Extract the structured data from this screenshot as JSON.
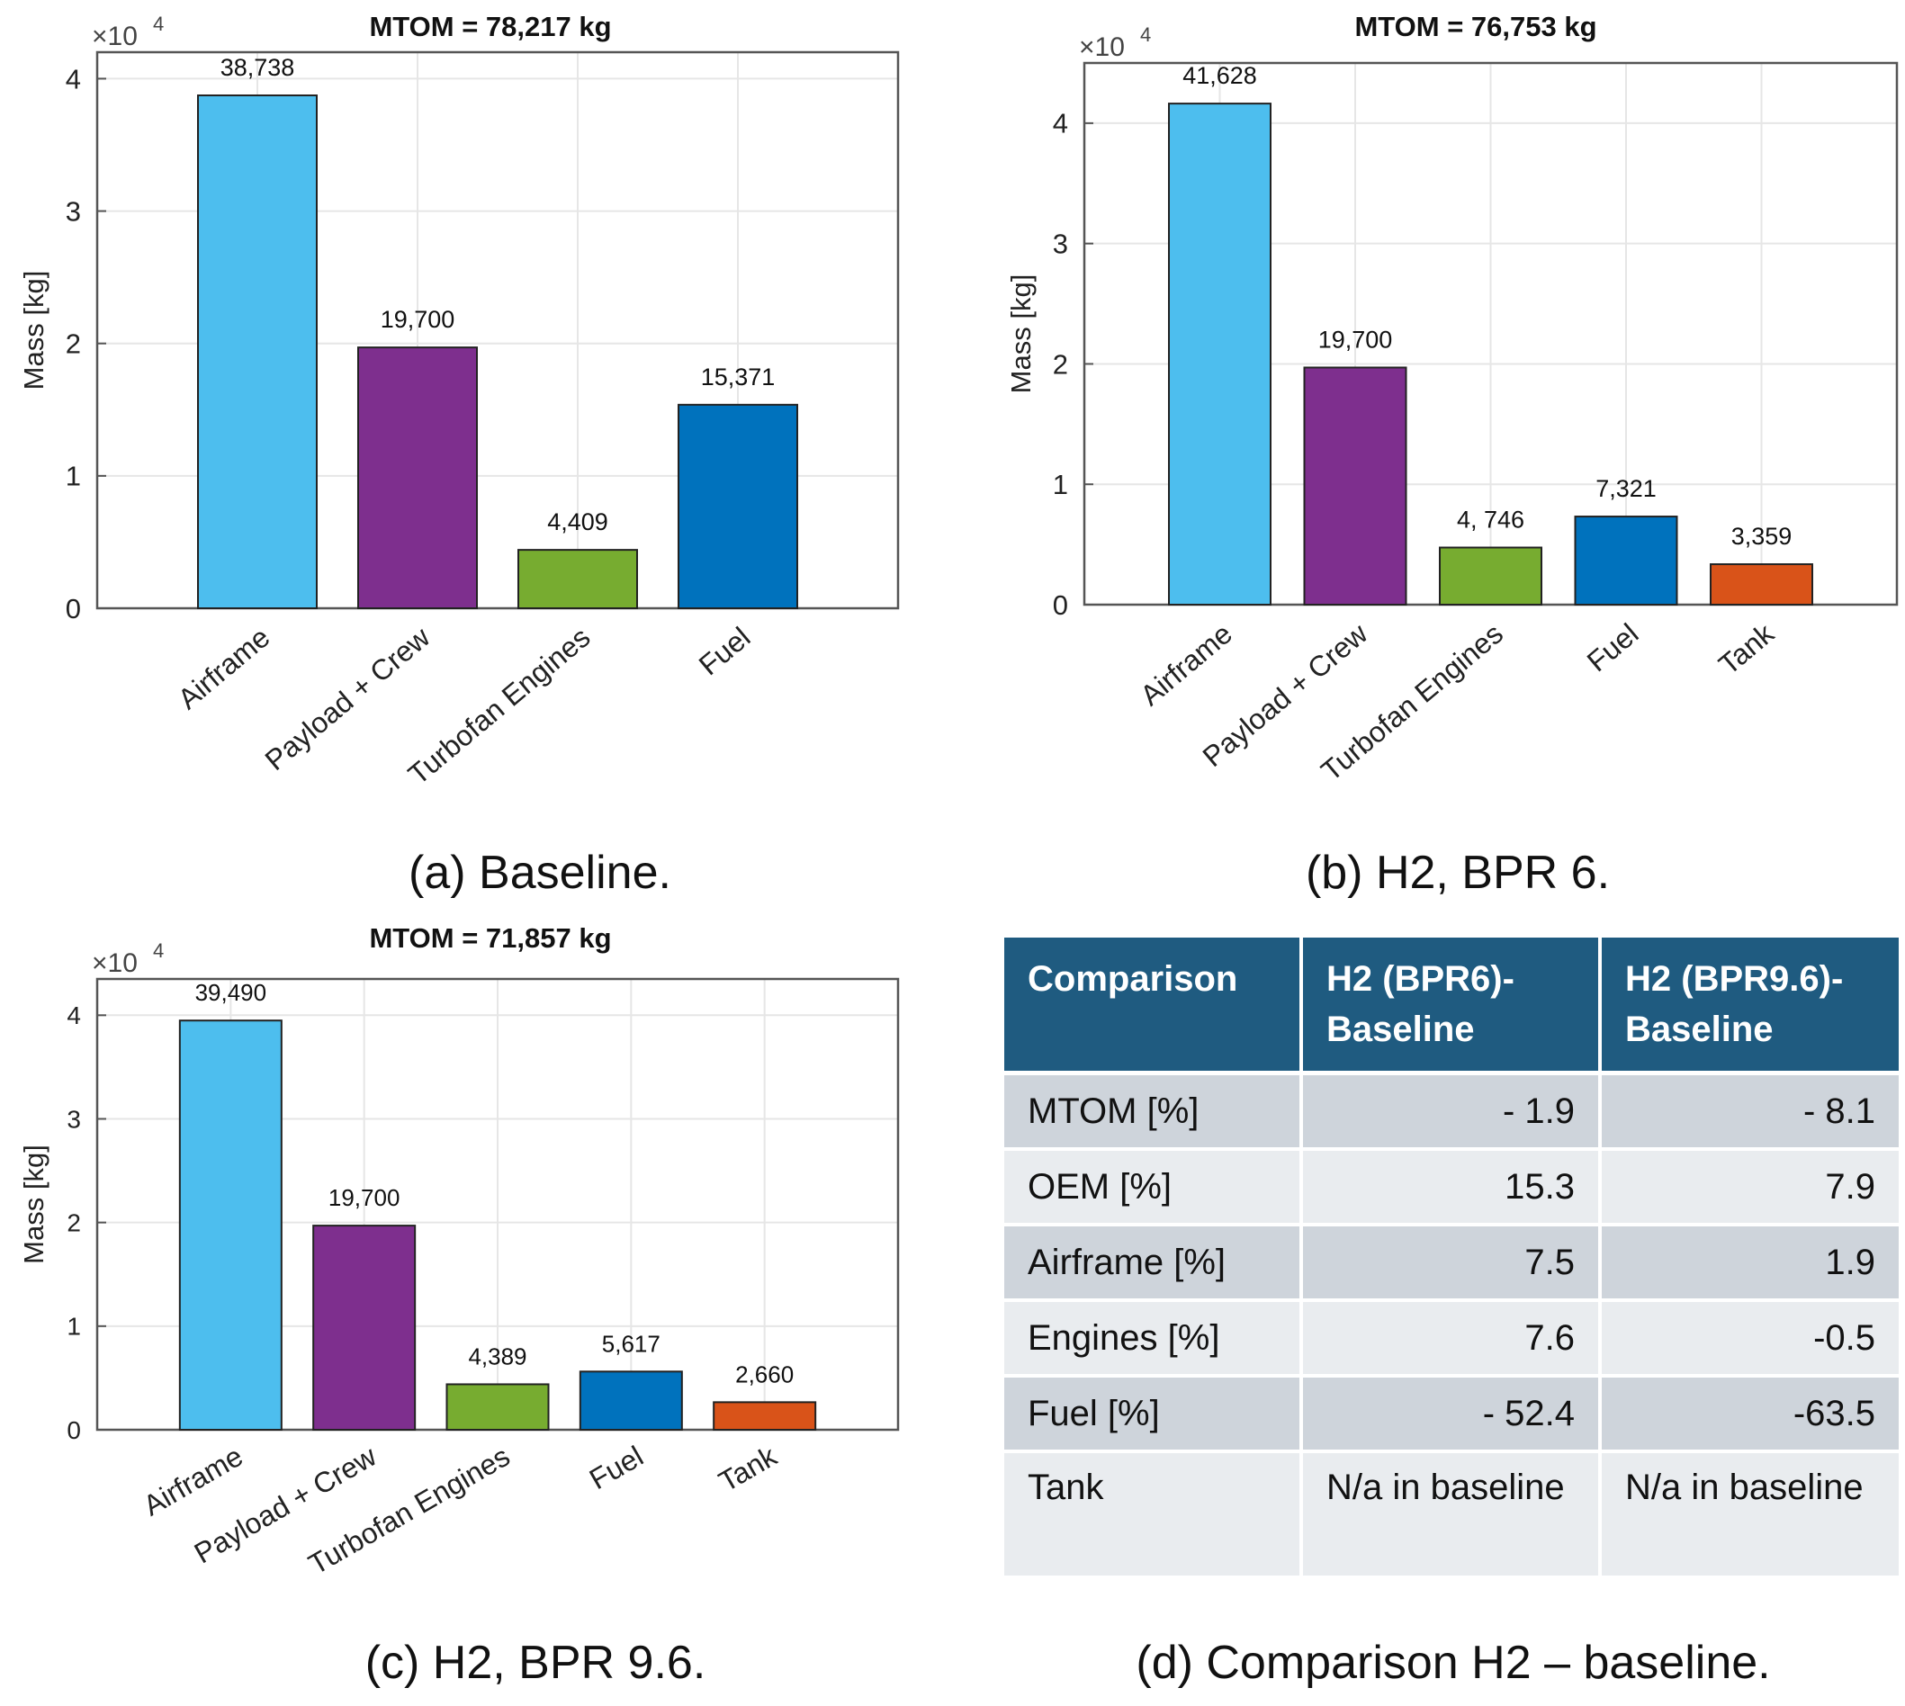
{
  "chart_data": [
    {
      "type": "bar",
      "panel": "a",
      "title": "MTOM = 78,217 kg",
      "ylabel": "Mass [kg]",
      "exponent_label": "×10",
      "exponent_power": "4",
      "ylim": [
        0,
        42000
      ],
      "y_ticks": [
        0,
        10000,
        20000,
        30000,
        40000
      ],
      "y_tick_labels": [
        "0",
        "1",
        "2",
        "3",
        "4"
      ],
      "grid": true,
      "categories": [
        "Airframe",
        "Payload + Crew",
        "Turbofan Engines",
        "Fuel"
      ],
      "values": [
        38738,
        19700,
        4409,
        15371
      ],
      "value_labels": [
        "38,738",
        "19,700",
        "4,409",
        "15,371"
      ],
      "colors": [
        "#4dbeee",
        "#7e2f8e",
        "#77ac30",
        "#0072bd"
      ],
      "caption": "(a) Baseline."
    },
    {
      "type": "bar",
      "panel": "b",
      "title": "MTOM = 76,753 kg",
      "ylabel": "Mass [kg]",
      "exponent_label": "×10",
      "exponent_power": "4",
      "ylim": [
        0,
        45000
      ],
      "y_ticks": [
        0,
        10000,
        20000,
        30000,
        40000
      ],
      "y_tick_labels": [
        "0",
        "1",
        "2",
        "3",
        "4"
      ],
      "grid": true,
      "categories": [
        "Airframe",
        "Payload + Crew",
        "Turbofan Engines",
        "Fuel",
        "Tank"
      ],
      "values": [
        41628,
        19700,
        4746,
        7321,
        3359
      ],
      "value_labels": [
        "41,628",
        "19,700",
        "4, 746",
        "7,321",
        "3,359"
      ],
      "colors": [
        "#4dbeee",
        "#7e2f8e",
        "#77ac30",
        "#0072bd",
        "#d95319"
      ],
      "caption": "(b) H2, BPR 6."
    },
    {
      "type": "bar",
      "panel": "c",
      "title": "MTOM = 71,857 kg",
      "ylabel": "Mass [kg]",
      "exponent_label": "×10",
      "exponent_power": "4",
      "ylim": [
        0,
        43500
      ],
      "y_ticks": [
        0,
        10000,
        20000,
        30000,
        40000
      ],
      "y_tick_labels": [
        "0",
        "1",
        "2",
        "3",
        "4"
      ],
      "grid": true,
      "categories": [
        "Airframe",
        "Payload + Crew",
        "Turbofan Engines",
        "Fuel",
        "Tank"
      ],
      "values": [
        39490,
        19700,
        4389,
        5617,
        2660
      ],
      "value_labels": [
        "39,490",
        "19,700",
        "4,389",
        "5,617",
        "2,660"
      ],
      "colors": [
        "#4dbeee",
        "#7e2f8e",
        "#77ac30",
        "#0072bd",
        "#d95319"
      ],
      "caption": "(c) H2, BPR 9.6."
    },
    {
      "type": "table",
      "panel": "d",
      "columns": [
        "Comparison",
        "H2 (BPR6)- Baseline",
        "H2 (BPR9.6)- Baseline"
      ],
      "rows": [
        [
          "MTOM [%]",
          "- 1.9",
          "- 8.1"
        ],
        [
          "OEM [%]",
          "15.3",
          "7.9"
        ],
        [
          "Airframe [%]",
          "7.5",
          "1.9"
        ],
        [
          "Engines [%]",
          "7.6",
          "-0.5"
        ],
        [
          "Fuel [%]",
          "- 52.4",
          "-63.5"
        ],
        [
          "Tank",
          "N/a in baseline",
          "N/a in baseline"
        ]
      ],
      "caption": "(d) Comparison H2 – baseline."
    }
  ],
  "colors": {
    "header_bg": "#1f5b80",
    "row_odd": "#ced4db",
    "row_even": "#e9ecef",
    "axis": "#555555",
    "grid": "#e6e6e6"
  }
}
